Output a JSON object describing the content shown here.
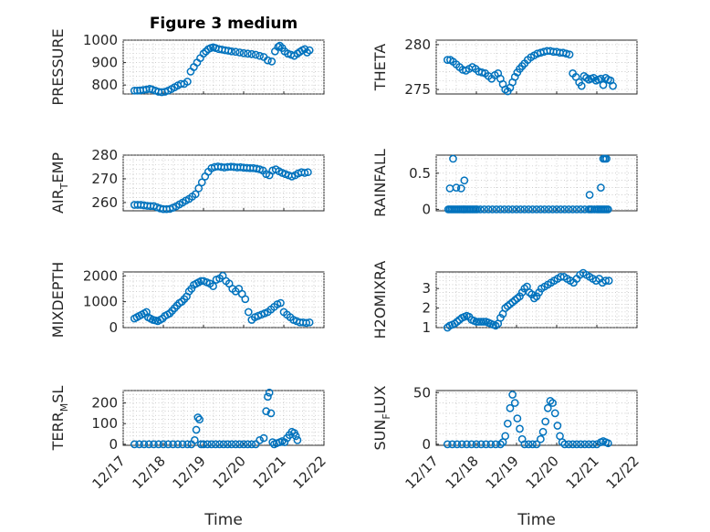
{
  "figure": {
    "title": "Figure 3 medium"
  },
  "colors": {
    "marker": "#0072BD",
    "axis": "#262626"
  },
  "xaxis": {
    "label": "Time",
    "tick_labels": [
      "12/17",
      "12/18",
      "12/19",
      "12/20",
      "12/21",
      "12/22"
    ],
    "tick_values": [
      0,
      1,
      2,
      3,
      4,
      5
    ],
    "range": [
      0,
      5
    ]
  },
  "chart_data": [
    {
      "type": "scatter",
      "ylabel": "PRESSURE",
      "ylabel_sub": "",
      "ylim": [
        760,
        1000
      ],
      "yticks": [
        800,
        900,
        1000
      ],
      "grid": true,
      "x": [
        0.28,
        0.35,
        0.42,
        0.5,
        0.58,
        0.66,
        0.72,
        0.8,
        0.88,
        0.96,
        1.04,
        1.12,
        1.2,
        1.28,
        1.36,
        1.44,
        1.52,
        1.6,
        1.68,
        1.76,
        1.84,
        1.92,
        2.0,
        2.06,
        2.12,
        2.18,
        2.24,
        2.3,
        2.38,
        2.46,
        2.54,
        2.62,
        2.7,
        2.8,
        2.9,
        3.0,
        3.1,
        3.2,
        3.3,
        3.4,
        3.5,
        3.6,
        3.7,
        3.78,
        3.86,
        3.9,
        3.96,
        4.02,
        4.1,
        4.18,
        4.26,
        4.34,
        4.4,
        4.46,
        4.52,
        4.58,
        4.64
      ],
      "y": [
        775,
        775,
        776,
        778,
        780,
        783,
        780,
        775,
        770,
        768,
        770,
        775,
        782,
        790,
        798,
        805,
        805,
        815,
        860,
        880,
        900,
        920,
        940,
        950,
        960,
        965,
        968,
        965,
        960,
        958,
        955,
        953,
        950,
        948,
        945,
        942,
        940,
        938,
        935,
        930,
        925,
        910,
        905,
        950,
        970,
        975,
        965,
        950,
        940,
        935,
        930,
        940,
        948,
        955,
        960,
        945,
        955
      ]
    },
    {
      "type": "scatter",
      "ylabel": "THETA",
      "ylabel_sub": "",
      "ylim": [
        274.5,
        280.5
      ],
      "yticks": [
        275,
        280
      ],
      "grid": true,
      "x": [
        0.28,
        0.35,
        0.42,
        0.5,
        0.58,
        0.66,
        0.74,
        0.82,
        0.9,
        0.98,
        1.06,
        1.14,
        1.22,
        1.3,
        1.38,
        1.46,
        1.54,
        1.6,
        1.66,
        1.72,
        1.78,
        1.84,
        1.9,
        1.96,
        2.02,
        2.08,
        2.14,
        2.2,
        2.28,
        2.36,
        2.44,
        2.52,
        2.6,
        2.68,
        2.76,
        2.84,
        2.92,
        3.0,
        3.08,
        3.16,
        3.24,
        3.32,
        3.4,
        3.48,
        3.56,
        3.62,
        3.68,
        3.74,
        3.8,
        3.86,
        3.92,
        3.98,
        4.04,
        4.1,
        4.16,
        4.22,
        4.28,
        4.34,
        4.4
      ],
      "y": [
        278.3,
        278.3,
        278.1,
        277.8,
        277.5,
        277.2,
        277.1,
        277.3,
        277.5,
        277.3,
        277.0,
        276.9,
        276.8,
        276.5,
        276.2,
        276.6,
        276.8,
        276.2,
        275.6,
        275.0,
        274.8,
        275.2,
        275.8,
        276.4,
        276.9,
        277.3,
        277.6,
        277.9,
        278.3,
        278.6,
        278.8,
        279.0,
        279.1,
        279.2,
        279.3,
        279.3,
        279.2,
        279.2,
        279.1,
        279.1,
        279.0,
        278.9,
        276.8,
        276.4,
        275.8,
        275.4,
        276.5,
        276.3,
        276.1,
        276.2,
        276.3,
        276.0,
        276.1,
        276.2,
        275.5,
        276.3,
        276.1,
        276.0,
        275.4
      ]
    },
    {
      "type": "scatter",
      "ylabel": "AIR",
      "ylabel_sub": "T",
      "ylabel_rest": "EMP",
      "ylim": [
        256.5,
        280
      ],
      "yticks": [
        260,
        270,
        280
      ],
      "grid": true,
      "x": [
        0.28,
        0.36,
        0.44,
        0.52,
        0.6,
        0.68,
        0.76,
        0.84,
        0.92,
        1.0,
        1.08,
        1.16,
        1.24,
        1.32,
        1.4,
        1.48,
        1.56,
        1.64,
        1.72,
        1.8,
        1.88,
        1.96,
        2.04,
        2.12,
        2.2,
        2.28,
        2.36,
        2.44,
        2.52,
        2.6,
        2.68,
        2.76,
        2.84,
        2.92,
        3.0,
        3.08,
        3.16,
        3.24,
        3.32,
        3.4,
        3.48,
        3.56,
        3.64,
        3.72,
        3.8,
        3.88,
        3.96,
        4.04,
        4.12,
        4.2,
        4.28,
        4.36,
        4.44,
        4.52,
        4.6
      ],
      "y": [
        259,
        259,
        259,
        258.8,
        258.6,
        258.5,
        258.5,
        258,
        257.5,
        257.2,
        257.2,
        257.3,
        257.8,
        258.4,
        259.2,
        260,
        260.8,
        261.5,
        262.5,
        263.5,
        266,
        268.5,
        271,
        273,
        274.5,
        275,
        275.2,
        275,
        274.8,
        275,
        275.1,
        275,
        274.8,
        274.9,
        274.7,
        274.6,
        274.5,
        274.5,
        274.3,
        274.0,
        273.5,
        272,
        271.5,
        273.5,
        274,
        273.2,
        272.5,
        272,
        271.5,
        271,
        271.5,
        272.3,
        272.8,
        272.5,
        272.8
      ]
    },
    {
      "type": "scatter",
      "ylabel": "RAINFALL",
      "ylabel_sub": "",
      "ylim": [
        -0.02,
        0.75
      ],
      "yticks": [
        0,
        0.5
      ],
      "ytick_labels": [
        "0",
        "0.5"
      ],
      "grid": true,
      "x": [
        0.3,
        0.34,
        0.38,
        0.42,
        0.46,
        0.5,
        0.54,
        0.58,
        0.62,
        0.66,
        0.7,
        0.74,
        0.78,
        0.82,
        0.86,
        0.9,
        0.94,
        0.98,
        1.02,
        1.1,
        1.2,
        1.3,
        1.4,
        1.5,
        1.6,
        1.7,
        1.8,
        1.9,
        2.0,
        2.1,
        2.2,
        2.3,
        2.4,
        2.5,
        2.6,
        2.7,
        2.8,
        2.9,
        3.0,
        3.1,
        3.2,
        3.3,
        3.4,
        3.5,
        3.6,
        3.7,
        3.8,
        3.84,
        3.88,
        3.94,
        4.0,
        4.04,
        4.08,
        4.12,
        4.16,
        4.2,
        4.24,
        4.28,
        0.34,
        0.42,
        0.5,
        0.62,
        0.7,
        3.82,
        4.1,
        4.16,
        4.2,
        4.24
      ],
      "y": [
        0,
        0,
        0,
        0,
        0,
        0,
        0,
        0,
        0,
        0,
        0,
        0,
        0,
        0,
        0,
        0,
        0,
        0,
        0,
        0,
        0,
        0,
        0,
        0,
        0,
        0,
        0,
        0,
        0,
        0,
        0,
        0,
        0,
        0,
        0,
        0,
        0,
        0,
        0,
        0,
        0,
        0,
        0,
        0,
        0,
        0,
        0,
        0,
        0,
        0,
        0,
        0,
        0,
        0,
        0,
        0,
        0,
        0,
        0.29,
        0.7,
        0.3,
        0.29,
        0.4,
        0.2,
        0.3,
        0.7,
        0.7,
        0.7
      ]
    },
    {
      "type": "scatter",
      "ylabel": "MIXDEPTH",
      "ylabel_sub": "",
      "ylim": [
        0,
        2150
      ],
      "yticks": [
        0,
        1000,
        2000
      ],
      "grid": true,
      "x": [
        0.28,
        0.34,
        0.4,
        0.46,
        0.52,
        0.58,
        0.62,
        0.68,
        0.74,
        0.8,
        0.86,
        0.92,
        0.98,
        1.04,
        1.1,
        1.16,
        1.22,
        1.28,
        1.34,
        1.4,
        1.46,
        1.52,
        1.58,
        1.64,
        1.7,
        1.76,
        1.82,
        1.88,
        1.94,
        2.0,
        2.08,
        2.16,
        2.24,
        2.32,
        2.4,
        2.48,
        2.56,
        2.64,
        2.72,
        2.8,
        2.88,
        2.96,
        3.04,
        3.12,
        3.2,
        3.28,
        3.36,
        3.44,
        3.52,
        3.6,
        3.68,
        3.76,
        3.84,
        3.92,
        4.0,
        4.08,
        4.16,
        4.24,
        4.32,
        4.4,
        4.48,
        4.56,
        4.64
      ],
      "y": [
        350,
        400,
        450,
        500,
        550,
        600,
        400,
        350,
        300,
        280,
        250,
        300,
        350,
        450,
        500,
        550,
        650,
        750,
        850,
        950,
        1000,
        1100,
        1200,
        1400,
        1500,
        1650,
        1700,
        1750,
        1800,
        1800,
        1750,
        1700,
        1600,
        1850,
        1900,
        2000,
        1800,
        1700,
        1500,
        1400,
        1500,
        1300,
        1100,
        600,
        300,
        400,
        450,
        500,
        550,
        600,
        700,
        800,
        900,
        950,
        600,
        500,
        400,
        300,
        250,
        200,
        200,
        180,
        200
      ]
    },
    {
      "type": "scatter",
      "ylabel": "H2OMIXRA",
      "ylabel_sub": "",
      "ylim": [
        1,
        3.85
      ],
      "yticks": [
        1,
        2,
        3
      ],
      "grid": true,
      "x": [
        0.28,
        0.34,
        0.4,
        0.46,
        0.52,
        0.58,
        0.64,
        0.7,
        0.76,
        0.82,
        0.88,
        0.94,
        1.0,
        1.06,
        1.12,
        1.18,
        1.24,
        1.3,
        1.36,
        1.42,
        1.48,
        1.54,
        1.6,
        1.66,
        1.72,
        1.78,
        1.84,
        1.9,
        1.96,
        2.02,
        2.08,
        2.14,
        2.2,
        2.26,
        2.32,
        2.38,
        2.44,
        2.5,
        2.56,
        2.62,
        2.7,
        2.78,
        2.86,
        2.94,
        3.02,
        3.1,
        3.18,
        3.26,
        3.34,
        3.42,
        3.5,
        3.58,
        3.66,
        3.74,
        3.82,
        3.9,
        3.98,
        4.06,
        4.14,
        4.22,
        4.3
      ],
      "y": [
        1.0,
        1.1,
        1.15,
        1.2,
        1.3,
        1.4,
        1.5,
        1.55,
        1.6,
        1.55,
        1.4,
        1.35,
        1.3,
        1.3,
        1.3,
        1.3,
        1.3,
        1.25,
        1.2,
        1.15,
        1.1,
        1.2,
        1.5,
        1.7,
        2.0,
        2.1,
        2.2,
        2.3,
        2.4,
        2.5,
        2.6,
        2.8,
        3.0,
        3.1,
        2.8,
        2.7,
        2.5,
        2.6,
        2.8,
        3.0,
        3.1,
        3.2,
        3.3,
        3.4,
        3.5,
        3.6,
        3.6,
        3.5,
        3.4,
        3.3,
        3.5,
        3.7,
        3.8,
        3.7,
        3.6,
        3.5,
        3.4,
        3.5,
        3.3,
        3.4,
        3.4
      ]
    },
    {
      "type": "scatter",
      "ylabel": "TERR",
      "ylabel_sub": "M",
      "ylabel_rest": "SL",
      "ylim": [
        -5,
        260
      ],
      "yticks": [
        0,
        100,
        200
      ],
      "grid": true,
      "x": [
        0.28,
        0.4,
        0.52,
        0.64,
        0.76,
        0.88,
        1.0,
        1.12,
        1.24,
        1.36,
        1.48,
        1.6,
        1.7,
        1.78,
        1.82,
        1.86,
        1.9,
        1.94,
        2.0,
        2.1,
        2.2,
        2.3,
        2.4,
        2.5,
        2.6,
        2.7,
        2.8,
        2.9,
        3.0,
        3.1,
        3.2,
        3.3,
        3.4,
        3.5,
        3.56,
        3.6,
        3.64,
        3.68,
        3.72,
        3.76,
        3.82,
        3.9,
        3.96,
        4.02,
        4.08,
        4.14,
        4.2,
        4.26,
        4.3,
        4.34
      ],
      "y": [
        0,
        0,
        0,
        0,
        0,
        0,
        0,
        0,
        0,
        0,
        0,
        0,
        0,
        20,
        70,
        130,
        120,
        0,
        0,
        0,
        0,
        0,
        0,
        0,
        0,
        0,
        0,
        0,
        0,
        0,
        0,
        0,
        20,
        30,
        160,
        230,
        250,
        150,
        10,
        0,
        5,
        10,
        15,
        10,
        30,
        45,
        60,
        55,
        40,
        20
      ]
    },
    {
      "type": "scatter",
      "ylabel": "SUN",
      "ylabel_sub": "F",
      "ylabel_rest": "LUX",
      "ylim": [
        -1,
        52
      ],
      "yticks": [
        0,
        50
      ],
      "grid": true,
      "x": [
        0.28,
        0.4,
        0.52,
        0.64,
        0.76,
        0.88,
        1.0,
        1.12,
        1.24,
        1.36,
        1.48,
        1.6,
        1.66,
        1.72,
        1.78,
        1.84,
        1.9,
        1.96,
        2.02,
        2.08,
        2.14,
        2.2,
        2.3,
        2.4,
        2.5,
        2.6,
        2.66,
        2.72,
        2.78,
        2.84,
        2.9,
        2.96,
        3.02,
        3.08,
        3.14,
        3.2,
        3.3,
        3.4,
        3.5,
        3.6,
        3.7,
        3.8,
        3.9,
        4.0,
        4.1,
        4.16,
        4.22,
        4.28
      ],
      "y": [
        0,
        0,
        0,
        0,
        0,
        0,
        0,
        0,
        0,
        0,
        0,
        0,
        2,
        8,
        20,
        35,
        48,
        40,
        25,
        15,
        5,
        0,
        0,
        0,
        0,
        5,
        12,
        22,
        35,
        42,
        40,
        30,
        18,
        8,
        2,
        0,
        0,
        0,
        0,
        0,
        0,
        0,
        0,
        0,
        2,
        3,
        2,
        1
      ]
    }
  ]
}
